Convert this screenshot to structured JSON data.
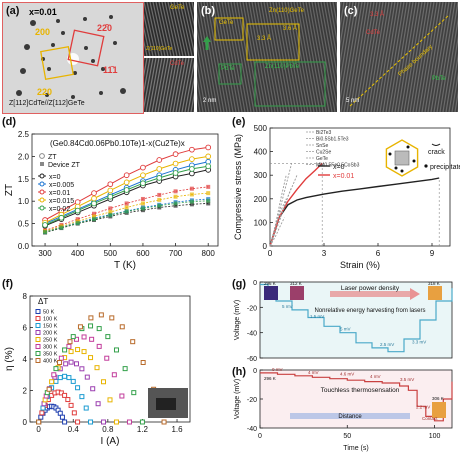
{
  "panels": {
    "a": {
      "label": "(a)",
      "x_value": "x=0.01",
      "diffraction_labels": [
        "200",
        "220",
        "11̄1",
        "22̄0"
      ],
      "zone_caption": "Z<sub>[112]</sub>Cd<sub>Te</sub>//Z<sub>[112]</sub>GeTe",
      "zone_caption_plain": "Z[112]CdTe//Z[112]GeTe",
      "inset_top_labels": [
        "GeTe",
        "Z(110)GeTe"
      ],
      "inset_bottom_labels": [
        "CdTe"
      ]
    },
    "b": {
      "label": "(b)",
      "labels": [
        "GeTe",
        "Zn(110)GeTe",
        "3.6 Å",
        "3.3 Å",
        "PbTe",
        "Zn(110)PbTe",
        "2 nm"
      ]
    },
    "c": {
      "label": "(c)",
      "labels": [
        "3.3 Å",
        "PbTe",
        "Phase boundary",
        "CdTe",
        "5 nm"
      ]
    },
    "d": {
      "label": "(d)",
      "formula": "(Ge0.84Cd0.06Pb0.10Te)1-x(Cu2Te)x",
      "legend": {
        "header_zt": "ZT",
        "header_device": "Device ZT",
        "entries": [
          "x=0",
          "x=0.005",
          "x=0.01",
          "x=0.015",
          "x=0.02"
        ]
      }
    },
    "e": {
      "label": "(e)",
      "legend": [
        "x=0",
        "x=0.01"
      ],
      "materials": [
        "Bi2Te3",
        "Bi0.5Sb1.5Te3",
        "SnSe",
        "Cu2Se",
        "GeTe",
        "MM0.5Fe0.5CoSb3"
      ],
      "annotations": [
        "crack",
        "precipitate"
      ]
    },
    "f": {
      "label": "(f)",
      "delta_t_title": "ΔT",
      "delta_t_entries": [
        "50 K",
        "100 K",
        "150 K",
        "200 K",
        "250 K",
        "300 K",
        "350 K",
        "400 K"
      ]
    },
    "g": {
      "label": "(g)",
      "title": "Laser power density",
      "subtitle": "Nonrelative energy harvesting from lasers",
      "temps": [
        "296 K",
        "312 K",
        "318 K"
      ],
      "levels": [
        "5 mV",
        "1.5 mV",
        "5 mV",
        "2.5 mV",
        "3.3 mV"
      ]
    },
    "h": {
      "label": "(h)",
      "title": "Touchless thermosensation",
      "distance": "Distance",
      "temps": [
        "296 K",
        "306 K"
      ],
      "levels": [
        "0 mV",
        "4 mV",
        "4.6 mV",
        "4 mV",
        "3.5 mV",
        "2.2 mV",
        "Contact"
      ]
    }
  },
  "chart_data": [
    {
      "panel": "d",
      "type": "line",
      "title": "(Ge0.84Cd0.06Pb0.10Te)1-x(Cu2Te)x",
      "xlabel": "T (K)",
      "ylabel": "ZT",
      "xlim": [
        260,
        830
      ],
      "ylim": [
        0,
        2.5
      ],
      "xticks": [
        300,
        400,
        500,
        600,
        700,
        800
      ],
      "yticks": [
        0.0,
        0.5,
        1.0,
        1.5,
        2.0,
        2.5
      ],
      "x": [
        300,
        350,
        400,
        450,
        500,
        550,
        600,
        650,
        700,
        750,
        800
      ],
      "series": [
        {
          "name": "x=0",
          "color": "#222222",
          "zt": [
            0.45,
            0.6,
            0.75,
            0.9,
            1.05,
            1.2,
            1.35,
            1.45,
            1.55,
            1.62,
            1.7
          ],
          "device": [
            0.3,
            0.4,
            0.5,
            0.58,
            0.66,
            0.74,
            0.8,
            0.86,
            0.9,
            0.93,
            0.95
          ]
        },
        {
          "name": "x=0.005",
          "color": "#1a73d1",
          "zt": [
            0.5,
            0.66,
            0.82,
            0.98,
            1.14,
            1.3,
            1.45,
            1.58,
            1.7,
            1.8,
            1.88
          ],
          "device": [
            0.32,
            0.42,
            0.52,
            0.62,
            0.7,
            0.78,
            0.86,
            0.92,
            0.98,
            1.02,
            1.05
          ]
        },
        {
          "name": "x=0.01",
          "color": "#e03c3c",
          "zt": [
            0.58,
            0.78,
            0.98,
            1.18,
            1.38,
            1.58,
            1.75,
            1.92,
            2.05,
            2.15,
            2.2
          ],
          "device": [
            0.35,
            0.47,
            0.6,
            0.72,
            0.84,
            0.95,
            1.05,
            1.14,
            1.22,
            1.28,
            1.32
          ]
        },
        {
          "name": "x=0.015",
          "color": "#e8b400",
          "zt": [
            0.52,
            0.7,
            0.88,
            1.06,
            1.24,
            1.42,
            1.58,
            1.72,
            1.84,
            1.94,
            2.0
          ],
          "device": [
            0.33,
            0.44,
            0.55,
            0.66,
            0.76,
            0.86,
            0.95,
            1.03,
            1.1,
            1.15,
            1.18
          ]
        },
        {
          "name": "x=0.02",
          "color": "#33a04a",
          "zt": [
            0.47,
            0.63,
            0.79,
            0.95,
            1.1,
            1.25,
            1.4,
            1.52,
            1.63,
            1.72,
            1.78
          ],
          "device": [
            0.31,
            0.41,
            0.51,
            0.6,
            0.69,
            0.77,
            0.84,
            0.9,
            0.95,
            0.99,
            1.01
          ]
        }
      ]
    },
    {
      "panel": "e",
      "type": "line",
      "xlabel": "Strain (%)",
      "ylabel": "Compressive stress (MPa)",
      "xlim": [
        0,
        10
      ],
      "ylim": [
        0,
        500
      ],
      "xticks": [
        0,
        3,
        6,
        9
      ],
      "yticks": [
        0,
        100,
        200,
        300,
        400,
        500
      ],
      "series": [
        {
          "name": "x=0",
          "color": "#222222",
          "x": [
            0,
            0.5,
            1.0,
            1.5,
            2.0,
            3.0,
            4.0,
            5.0,
            6.0,
            7.0,
            8.0,
            9.0,
            9.4
          ],
          "y": [
            0,
            120,
            175,
            195,
            205,
            220,
            232,
            242,
            252,
            262,
            272,
            282,
            288
          ]
        },
        {
          "name": "x=0.01",
          "color": "#e03c3c",
          "x": [
            0,
            0.5,
            1.0,
            1.5,
            2.0,
            2.5,
            2.9
          ],
          "y": [
            0,
            120,
            190,
            240,
            285,
            320,
            350
          ]
        },
        {
          "name": "Bi2Te3",
          "color": "#9a9a9a",
          "x": [
            0,
            0.3,
            0.6,
            0.9
          ],
          "y": [
            0,
            90,
            200,
            300
          ]
        },
        {
          "name": "Bi0.5Sb1.5Te3",
          "color": "#9a9a9a",
          "x": [
            0,
            0.3,
            0.6,
            1.0,
            1.2
          ],
          "y": [
            0,
            60,
            130,
            210,
            250
          ]
        },
        {
          "name": "SnSe",
          "color": "#9a9a9a",
          "x": [
            0,
            0.3,
            0.6,
            0.8
          ],
          "y": [
            0,
            40,
            90,
            120
          ]
        },
        {
          "name": "Cu2Se",
          "color": "#9a9a9a",
          "x": [
            0,
            0.5,
            1.0,
            1.5
          ],
          "y": [
            0,
            100,
            210,
            300
          ]
        },
        {
          "name": "GeTe",
          "color": "#9a9a9a",
          "x": [
            0,
            0.3,
            0.6,
            0.9
          ],
          "y": [
            0,
            80,
            150,
            200
          ]
        },
        {
          "name": "MM0.5Fe0.5CoSb3",
          "color": "#9a9a9a",
          "x": [
            0,
            0.4,
            0.8,
            1.2
          ],
          "y": [
            0,
            110,
            230,
            350
          ]
        }
      ]
    },
    {
      "panel": "f",
      "type": "scatter",
      "xlabel": "I (A)",
      "ylabel": "η (%)",
      "xlim": [
        -0.1,
        1.75
      ],
      "ylim": [
        0,
        8
      ],
      "xticks": [
        0.0,
        0.4,
        0.8,
        1.2,
        1.6
      ],
      "yticks": [
        0,
        2,
        4,
        6,
        8
      ],
      "series": [
        {
          "name": "50 K",
          "color": "#1e3fb0",
          "imax": 0.3,
          "peak": 1.0
        },
        {
          "name": "100 K",
          "color": "#e03c3c",
          "imax": 0.45,
          "peak": 1.9
        },
        {
          "name": "150 K",
          "color": "#1a9bd1",
          "imax": 0.6,
          "peak": 2.9
        },
        {
          "name": "200 K",
          "color": "#9b3fb0",
          "imax": 0.75,
          "peak": 3.8
        },
        {
          "name": "250 K",
          "color": "#e8b400",
          "imax": 0.9,
          "peak": 4.6
        },
        {
          "name": "300 K",
          "color": "#c23c9b",
          "imax": 1.05,
          "peak": 5.4
        },
        {
          "name": "350 K",
          "color": "#33a04a",
          "imax": 1.2,
          "peak": 6.1
        },
        {
          "name": "400 K",
          "color": "#b86a2a",
          "imax": 1.45,
          "peak": 6.8
        }
      ]
    },
    {
      "panel": "g",
      "type": "line",
      "ylabel": "Voltage (mV)",
      "ylim": [
        -60,
        0
      ],
      "yticks": [
        -60,
        -40,
        -20,
        0
      ],
      "xlim": [
        0,
        120
      ],
      "series": [
        {
          "name": "signal",
          "color": "#4aa9c9",
          "x": [
            0,
            5,
            10,
            20,
            30,
            40,
            50,
            60,
            70,
            80,
            90,
            100,
            110,
            120
          ],
          "y": [
            -2,
            -5,
            -15,
            -22,
            -28,
            -35,
            -40,
            -48,
            -52,
            -55,
            -45,
            -30,
            -15,
            -5
          ]
        }
      ]
    },
    {
      "panel": "h",
      "type": "line",
      "xlabel": "Time (s)",
      "ylabel": "Voltage (mV)",
      "xlim": [
        0,
        110
      ],
      "ylim": [
        -40,
        0
      ],
      "xticks": [
        0,
        50,
        100
      ],
      "yticks": [
        -40,
        -20,
        0
      ],
      "series": [
        {
          "name": "signal",
          "color": "#c94040",
          "x": [
            0,
            10,
            20,
            30,
            40,
            50,
            60,
            70,
            80,
            85,
            90,
            95,
            100,
            105,
            110
          ],
          "y": [
            -2,
            -3,
            -4,
            -5,
            -6,
            -7,
            -8,
            -9,
            -11,
            -14,
            -25,
            -32,
            -35,
            -20,
            -8
          ]
        }
      ]
    }
  ]
}
